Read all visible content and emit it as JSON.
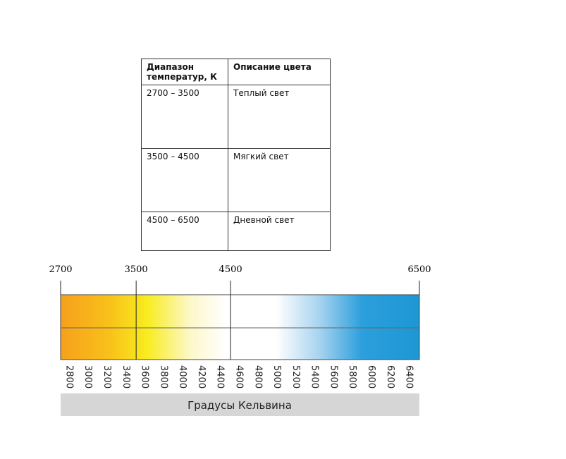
{
  "table": {
    "header": [
      "Диапазон температур, К",
      "Описание цвета"
    ],
    "rows": [
      [
        "2700 – 3500",
        "Теплый  свет"
      ],
      [
        "3500 – 4500",
        "Мягкий свет"
      ],
      [
        "4500  – 6500",
        "Дневной свет"
      ]
    ]
  },
  "scale": {
    "markers": [
      2700,
      3500,
      4500,
      6500
    ],
    "ticks": [
      2800,
      3000,
      3200,
      3400,
      3600,
      3800,
      4000,
      4200,
      4400,
      4600,
      4800,
      5000,
      5200,
      5400,
      5600,
      5800,
      6000,
      6200,
      6400
    ],
    "caption": "Градусы Кельвина"
  }
}
